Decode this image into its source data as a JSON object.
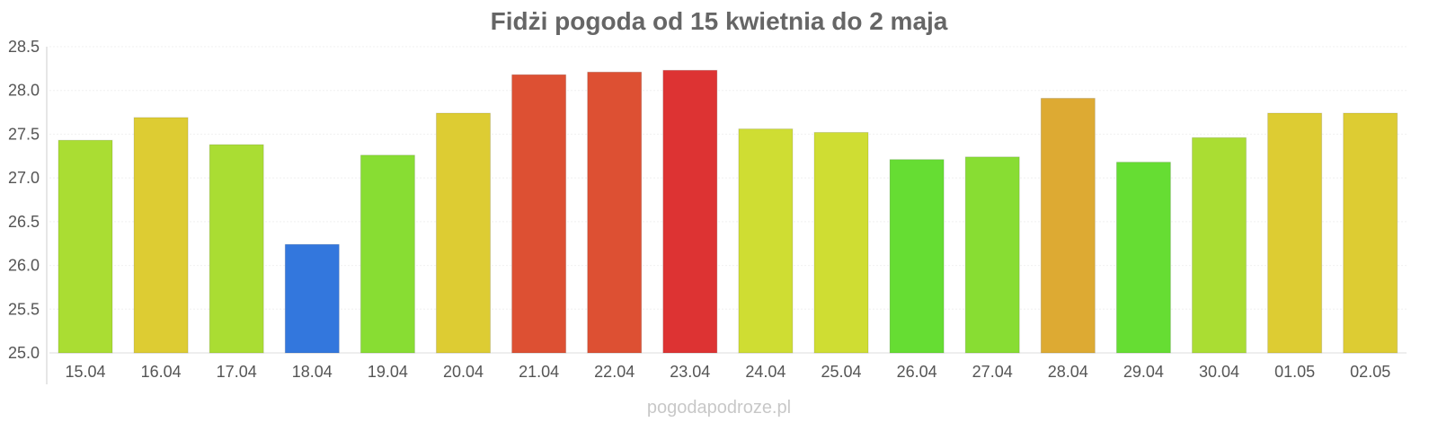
{
  "chart_data": {
    "type": "bar",
    "title": "Fidżi pogoda od 15 kwietnia do 2 maja",
    "xlabel": "",
    "ylabel": "",
    "ylim": [
      25.0,
      28.5
    ],
    "yticks": [
      "25.0",
      "25.5",
      "26.0",
      "26.5",
      "27.0",
      "27.5",
      "28.0",
      "28.5"
    ],
    "grid": true,
    "categories": [
      "15.04",
      "16.04",
      "17.04",
      "18.04",
      "19.04",
      "20.04",
      "21.04",
      "22.04",
      "23.04",
      "24.04",
      "25.04",
      "26.04",
      "27.04",
      "28.04",
      "29.04",
      "30.04",
      "01.05",
      "02.05"
    ],
    "values": [
      27.43,
      27.69,
      27.38,
      26.24,
      27.26,
      27.74,
      28.18,
      28.21,
      28.23,
      27.56,
      27.52,
      27.21,
      27.24,
      27.91,
      27.18,
      27.46,
      27.74,
      27.74
    ],
    "colors": [
      "#aadd33",
      "#ddcc33",
      "#aadd33",
      "#3377dd",
      "#88dd33",
      "#ddcc33",
      "#dd5033",
      "#dd5033",
      "#dd3333",
      "#cfdd33",
      "#cfdd33",
      "#66dd33",
      "#88dd33",
      "#ddaa33",
      "#66dd33",
      "#aadd33",
      "#ddcc33",
      "#ddcc33"
    ]
  },
  "watermark": "pogodapodroze.pl"
}
